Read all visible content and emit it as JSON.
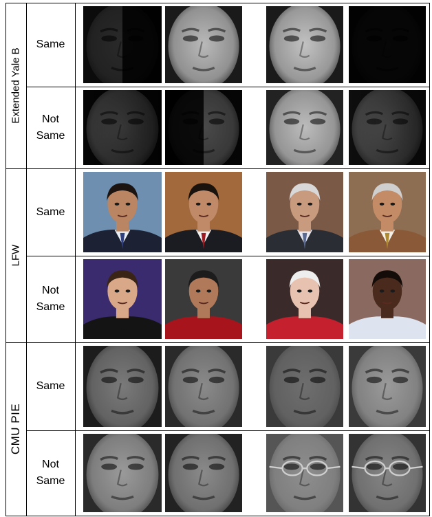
{
  "datasets": [
    {
      "label": "Extended Yale B",
      "style": "gray",
      "rows": [
        {
          "label": "Same",
          "pairs": [
            [
              {
                "tone": "#0b0b0b",
                "skin": "#2a2a2a",
                "light": "left-half"
              },
              {
                "tone": "#1a1a1a",
                "skin": "#b9b9b9",
                "light": "full"
              }
            ],
            [
              {
                "tone": "#1a1a1a",
                "skin": "#c2c2c2",
                "light": "full"
              },
              {
                "tone": "#050505",
                "skin": "#121212",
                "light": "dark"
              }
            ]
          ]
        },
        {
          "label": "Not Same",
          "pairs": [
            [
              {
                "tone": "#060606",
                "skin": "#5a5a5a",
                "light": "low"
              },
              {
                "tone": "#050505",
                "skin": "#4a4a4a",
                "light": "right-half"
              }
            ],
            [
              {
                "tone": "#222222",
                "skin": "#bcbcbc",
                "light": "full"
              },
              {
                "tone": "#111111",
                "skin": "#6d6d6d",
                "light": "low"
              }
            ]
          ]
        }
      ]
    },
    {
      "label": "LFW",
      "style": "color",
      "rows": [
        {
          "label": "Same",
          "pairs": [
            [
              {
                "bg": "#6f8fb0",
                "skin": "#b98562",
                "hair": "#1c1410",
                "suit": "#1c2233",
                "tie": "#2f3f80",
                "shirt": "#e8eef4"
              },
              {
                "bg": "#a26a3c",
                "skin": "#c08a68",
                "hair": "#1a120c",
                "suit": "#1b1b22",
                "tie": "#a01a22",
                "shirt": "#f2f2f2"
              }
            ],
            [
              {
                "bg": "#7a5a46",
                "skin": "#c99b7e",
                "hair": "#d8d8d8",
                "suit": "#2b2d35",
                "tie": "#5a6a90",
                "shirt": "#e8e8f0"
              },
              {
                "bg": "#8e6e52",
                "skin": "#c48c66",
                "hair": "#cfcfcf",
                "suit": "#8a5a38",
                "tie": "#b08a30",
                "shirt": "#f4f0e8"
              }
            ]
          ]
        },
        {
          "label": "Not Same",
          "pairs": [
            [
              {
                "bg": "#3a2a6e",
                "skin": "#d8a888",
                "hair": "#3a2416",
                "suit": "#141414",
                "tie": "#141414",
                "shirt": "#141414"
              },
              {
                "bg": "#3a3a3a",
                "skin": "#b07a5a",
                "hair": "#1c1c1c",
                "suit": "#a8141c",
                "tie": "#a8141c",
                "shirt": "#a8141c"
              }
            ],
            [
              {
                "bg": "#3a2a2a",
                "skin": "#e8c2b0",
                "hair": "#eeeeee",
                "suit": "#c4202e",
                "tie": "#c4202e",
                "shirt": "#c4202e"
              },
              {
                "bg": "#8a6a60",
                "skin": "#4a2a1c",
                "hair": "#140c08",
                "suit": "#dde4f0",
                "tie": "#dde4f0",
                "shirt": "#dde4f0"
              }
            ]
          ]
        }
      ]
    },
    {
      "label": "CMU PIE",
      "style": "gray",
      "rows": [
        {
          "label": "Same",
          "pairs": [
            [
              {
                "tone": "#1c1c1c",
                "skin": "#7a7a7a",
                "light": "soft"
              },
              {
                "tone": "#2a2a2a",
                "skin": "#8a8a8a",
                "light": "soft"
              }
            ],
            [
              {
                "tone": "#3a3a3a",
                "skin": "#6e6e6e",
                "light": "soft"
              },
              {
                "tone": "#3a3a3a",
                "skin": "#9a9a9a",
                "light": "soft"
              }
            ]
          ]
        },
        {
          "label": "Not Same",
          "pairs": [
            [
              {
                "tone": "#2a2a2a",
                "skin": "#9a9a9a",
                "light": "soft"
              },
              {
                "tone": "#222222",
                "skin": "#8a8a8a",
                "light": "soft"
              }
            ],
            [
              {
                "tone": "#555555",
                "skin": "#8e8e8e",
                "light": "soft",
                "glasses": true
              },
              {
                "tone": "#333333",
                "skin": "#858585",
                "light": "soft",
                "glasses": true
              }
            ]
          ]
        }
      ]
    }
  ]
}
